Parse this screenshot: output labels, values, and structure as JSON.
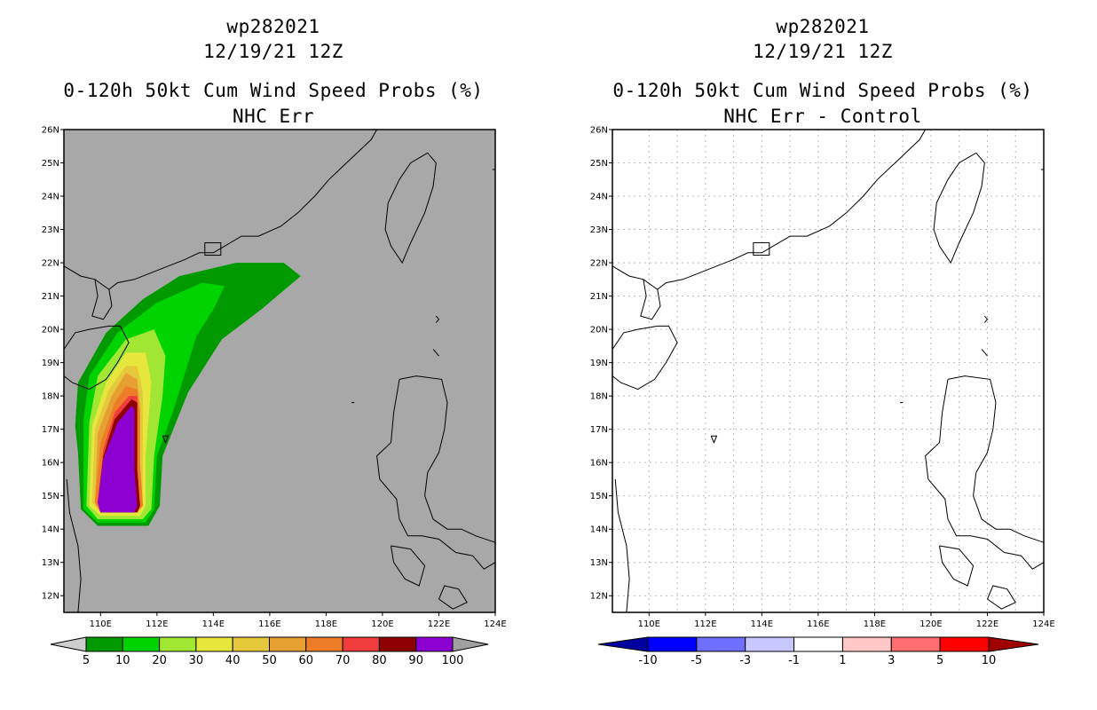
{
  "panels": [
    {
      "storm_id": "wp282021",
      "datetime": "12/19/21 12Z",
      "product": "0-120h 50kt Cum Wind Speed Probs (%)",
      "subtitle": "NHC Err",
      "map_background": "#a8a8a8",
      "colorbar": {
        "labels": [
          "5",
          "10",
          "20",
          "30",
          "40",
          "50",
          "60",
          "70",
          "80",
          "90",
          "100"
        ],
        "colors": [
          "#cdcdcd",
          "#009a00",
          "#00d400",
          "#a0e632",
          "#e6e63c",
          "#e6c83c",
          "#e6a032",
          "#ee7d28",
          "#f03c3c",
          "#8c0000",
          "#8c00d2",
          "#a0a0a0"
        ]
      }
    },
    {
      "storm_id": "wp282021",
      "datetime": "12/19/21 12Z",
      "product": "0-120h 50kt Cum Wind Speed Probs (%)",
      "subtitle": "NHC Err - Control",
      "map_background": "#ffffff",
      "colorbar": {
        "labels": [
          "-10",
          "-5",
          "-3",
          "-1",
          "1",
          "3",
          "5",
          "10"
        ],
        "colors": [
          "#0000a0",
          "#0000ff",
          "#6e6eff",
          "#c8c8ff",
          "#ffffff",
          "#ffc8c8",
          "#ff6e6e",
          "#ff0000",
          "#a00000"
        ]
      }
    }
  ],
  "axes": {
    "lat_labels": [
      "26N",
      "25N",
      "24N",
      "23N",
      "22N",
      "21N",
      "20N",
      "19N",
      "18N",
      "17N",
      "16N",
      "15N",
      "14N",
      "13N",
      "12N"
    ],
    "lon_labels": [
      "110E",
      "112E",
      "114E",
      "116E",
      "118E",
      "120E",
      "122E",
      "124E"
    ]
  }
}
